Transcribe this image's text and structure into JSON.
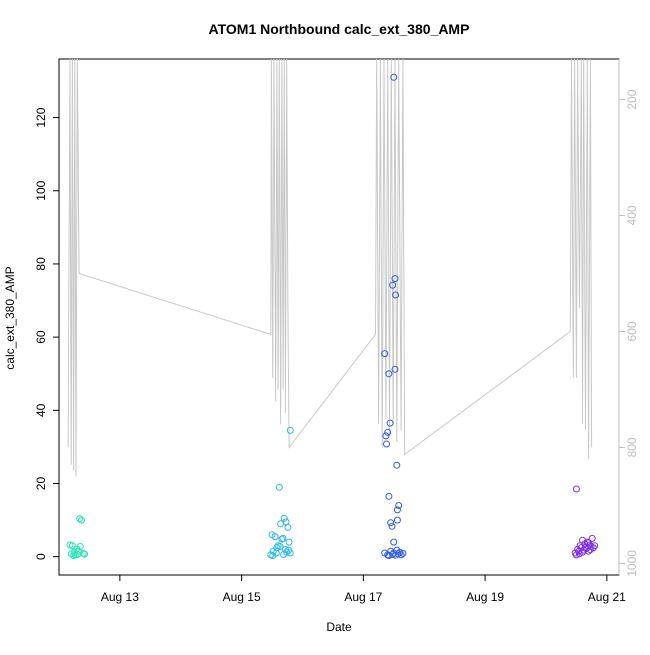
{
  "chart_data": {
    "type": "scatter",
    "title": "ATOM1 Northbound calc_ext_380_AMP",
    "xlabel": "Date",
    "ylabel": "calc_ext_380_AMP",
    "x_ticks": [
      "Aug 13",
      "Aug 15",
      "Aug 17",
      "Aug 19",
      "Aug 21"
    ],
    "x_tick_values": [
      13,
      15,
      17,
      19,
      21
    ],
    "xlim": [
      12.0,
      21.2
    ],
    "y_ticks": [
      0,
      20,
      40,
      60,
      80,
      100,
      120
    ],
    "ylim": [
      -5,
      136
    ],
    "right_axis": {
      "ticks": [
        200,
        400,
        600,
        800,
        1000
      ],
      "ylim": [
        1020,
        130
      ],
      "reversed": true,
      "color": "#bdbdbd"
    },
    "grid": false,
    "series": [
      {
        "color": "#22e6b4",
        "marker": "open-circle",
        "points": [
          [
            12.18,
            3.2
          ],
          [
            12.22,
            3.0
          ],
          [
            12.2,
            0.8
          ],
          [
            12.25,
            1.2
          ],
          [
            12.27,
            0.5
          ],
          [
            12.3,
            0.6
          ],
          [
            12.32,
            1.5
          ],
          [
            12.34,
            10.4
          ],
          [
            12.37,
            10.0
          ],
          [
            12.35,
            2.8
          ],
          [
            12.4,
            0.9
          ],
          [
            12.42,
            0.7
          ],
          [
            12.24,
            0.3
          ],
          [
            12.29,
            2.1
          ]
        ]
      },
      {
        "color": "#29b6f6",
        "marker": "open-circle",
        "points": [
          [
            15.5,
            6.0
          ],
          [
            15.55,
            5.5
          ],
          [
            15.52,
            1.5
          ],
          [
            15.58,
            2.5
          ],
          [
            15.6,
            3.0
          ],
          [
            15.62,
            19.0
          ],
          [
            15.64,
            9.0
          ],
          [
            15.66,
            4.8
          ],
          [
            15.68,
            5.0
          ],
          [
            15.7,
            10.5
          ],
          [
            15.72,
            2.0
          ],
          [
            15.74,
            1.2
          ],
          [
            15.76,
            8.0
          ],
          [
            15.78,
            4.0
          ],
          [
            15.8,
            1.0
          ],
          [
            15.8,
            34.5
          ],
          [
            15.48,
            0.5
          ],
          [
            15.51,
            0.3
          ],
          [
            15.57,
            1.0
          ],
          [
            15.63,
            2.8
          ],
          [
            15.69,
            0.6
          ],
          [
            15.73,
            9.5
          ],
          [
            15.77,
            1.8
          ]
        ]
      },
      {
        "color": "#2e5ce6",
        "marker": "open-circle",
        "points": [
          [
            17.35,
            55.5
          ],
          [
            17.37,
            33.0
          ],
          [
            17.4,
            34.0
          ],
          [
            17.38,
            30.8
          ],
          [
            17.42,
            50.0
          ],
          [
            17.44,
            36.5
          ],
          [
            17.48,
            74.2
          ],
          [
            17.5,
            131.0
          ],
          [
            17.52,
            76.0
          ],
          [
            17.53,
            71.5
          ],
          [
            17.52,
            51.2
          ],
          [
            17.55,
            25.0
          ],
          [
            17.58,
            14.0
          ],
          [
            17.56,
            12.8
          ],
          [
            17.56,
            10.0
          ],
          [
            17.42,
            16.5
          ],
          [
            17.45,
            9.3
          ],
          [
            17.47,
            8.3
          ],
          [
            17.5,
            4.0
          ],
          [
            17.35,
            1.0
          ],
          [
            17.4,
            0.5
          ],
          [
            17.42,
            0.3
          ],
          [
            17.45,
            1.5
          ],
          [
            17.48,
            0.6
          ],
          [
            17.5,
            1.0
          ],
          [
            17.53,
            0.4
          ],
          [
            17.55,
            1.8
          ],
          [
            17.57,
            0.8
          ],
          [
            17.6,
            1.2
          ],
          [
            17.62,
            0.5
          ],
          [
            17.65,
            0.9
          ]
        ]
      },
      {
        "color": "#7b2ff2",
        "marker": "open-circle",
        "points": [
          [
            20.5,
            18.5
          ],
          [
            20.48,
            1.0
          ],
          [
            20.5,
            0.5
          ],
          [
            20.52,
            2.0
          ],
          [
            20.54,
            1.5
          ],
          [
            20.56,
            3.0
          ],
          [
            20.58,
            2.5
          ],
          [
            20.6,
            4.5
          ],
          [
            20.62,
            1.8
          ],
          [
            20.64,
            3.5
          ],
          [
            20.66,
            2.2
          ],
          [
            20.68,
            4.0
          ],
          [
            20.7,
            1.5
          ],
          [
            20.72,
            3.2
          ],
          [
            20.74,
            2.8
          ],
          [
            20.76,
            5.0
          ],
          [
            20.55,
            0.8
          ],
          [
            20.6,
            1.2
          ],
          [
            20.65,
            2.6
          ],
          [
            20.7,
            3.8
          ],
          [
            20.73,
            1.9
          ],
          [
            20.78,
            2.4
          ],
          [
            20.8,
            3.0
          ]
        ]
      }
    ],
    "reference_line": {
      "color": "#c8c8c8",
      "axis": "right",
      "points": [
        [
          12.15,
          800
        ],
        [
          12.18,
          130
        ],
        [
          12.2,
          830
        ],
        [
          12.22,
          130
        ],
        [
          12.24,
          840
        ],
        [
          12.26,
          130
        ],
        [
          12.28,
          850
        ],
        [
          12.3,
          130
        ],
        [
          12.33,
          500
        ],
        [
          15.48,
          605
        ],
        [
          15.49,
          130
        ],
        [
          15.51,
          680
        ],
        [
          15.53,
          130
        ],
        [
          15.56,
          720
        ],
        [
          15.58,
          130
        ],
        [
          15.6,
          700
        ],
        [
          15.62,
          130
        ],
        [
          15.64,
          760
        ],
        [
          15.66,
          130
        ],
        [
          15.68,
          700
        ],
        [
          15.7,
          130
        ],
        [
          15.72,
          740
        ],
        [
          15.74,
          130
        ],
        [
          15.76,
          560
        ],
        [
          15.78,
          800
        ],
        [
          17.2,
          605
        ],
        [
          17.22,
          130
        ],
        [
          17.25,
          760
        ],
        [
          17.28,
          130
        ],
        [
          17.31,
          800
        ],
        [
          17.34,
          130
        ],
        [
          17.37,
          750
        ],
        [
          17.4,
          130
        ],
        [
          17.43,
          780
        ],
        [
          17.46,
          130
        ],
        [
          17.49,
          760
        ],
        [
          17.52,
          130
        ],
        [
          17.55,
          790
        ],
        [
          17.58,
          130
        ],
        [
          17.62,
          770
        ],
        [
          17.65,
          130
        ],
        [
          17.68,
          812
        ],
        [
          20.4,
          600
        ],
        [
          20.42,
          130
        ],
        [
          20.45,
          680
        ],
        [
          20.47,
          130
        ],
        [
          20.5,
          680
        ],
        [
          20.52,
          130
        ],
        [
          20.55,
          560
        ],
        [
          20.58,
          130
        ],
        [
          20.6,
          760
        ],
        [
          20.62,
          130
        ],
        [
          20.65,
          770
        ],
        [
          20.68,
          130
        ],
        [
          20.7,
          820
        ],
        [
          20.73,
          130
        ],
        [
          20.75,
          800
        ]
      ]
    }
  }
}
